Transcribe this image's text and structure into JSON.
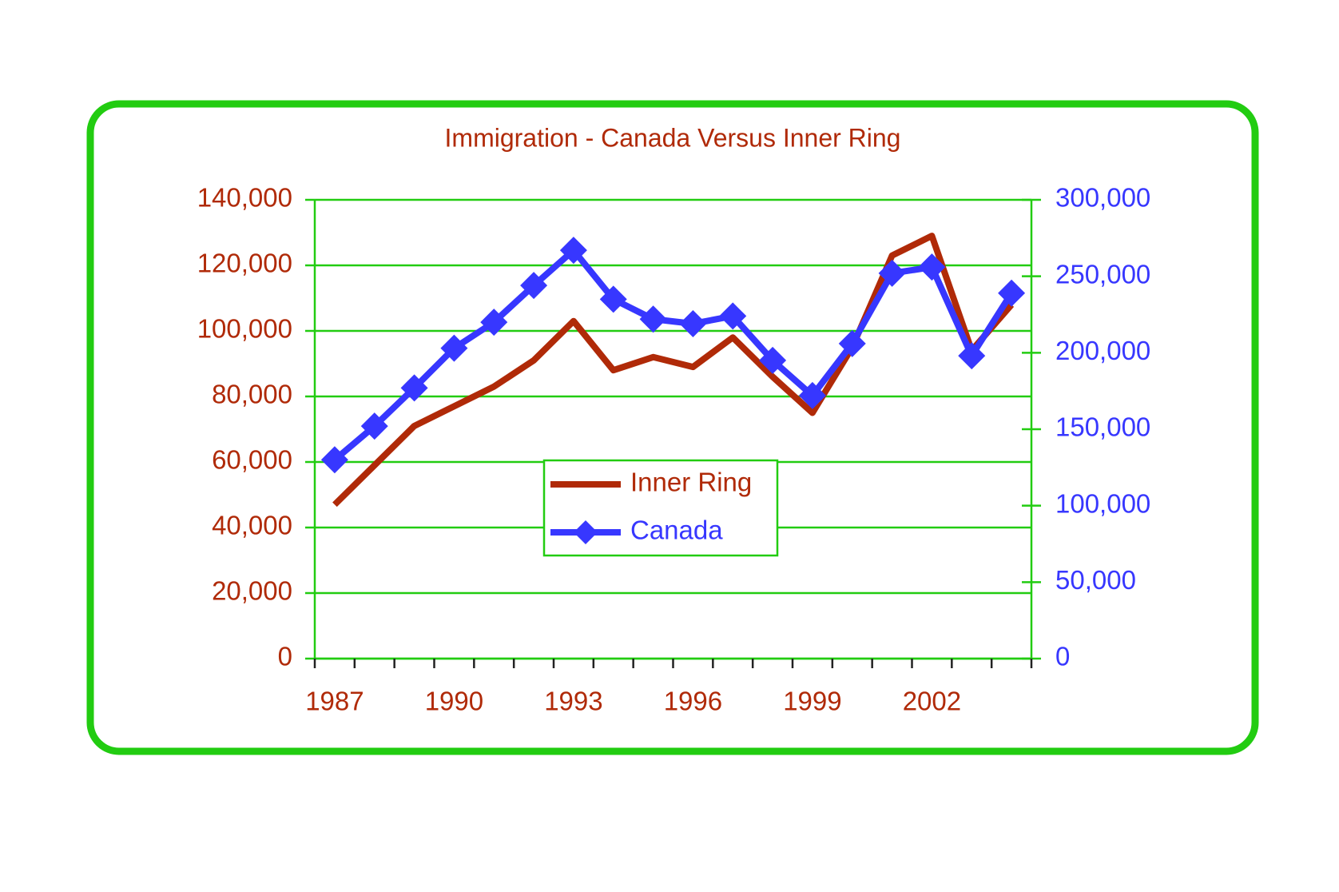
{
  "chart_data": {
    "type": "line",
    "title": "Immigration - Canada Versus Inner Ring",
    "categories": [
      "1987",
      null,
      null,
      "1990",
      null,
      null,
      "1993",
      null,
      null,
      "1996",
      null,
      null,
      "1999",
      null,
      null,
      "2002",
      null,
      null
    ],
    "series": [
      {
        "name": "Inner Ring",
        "color": "#b02a08",
        "values": [
          47000,
          59000,
          71000,
          77000,
          83000,
          91000,
          103000,
          88000,
          92000,
          89000,
          98000,
          86000,
          75000,
          95000,
          123000,
          129000,
          94000,
          108000
        ]
      },
      {
        "name": "Canada",
        "color": "#3737ff",
        "axis": "y2",
        "marker": "diamond",
        "values": [
          130000,
          152000,
          177000,
          203000,
          220000,
          244000,
          267000,
          235000,
          222000,
          219000,
          224000,
          195000,
          172000,
          206000,
          252000,
          256000,
          198000,
          239000
        ]
      }
    ],
    "ylim": [
      0,
      140000
    ],
    "yticks": [
      0,
      {
        "value": 20000,
        "label": "20,000"
      },
      {
        "value": 40000,
        "label": "40,000"
      },
      {
        "value": 60000,
        "label": "60,000"
      },
      {
        "value": 80000,
        "label": "80,000"
      },
      {
        "value": 100000,
        "label": "100,000"
      },
      {
        "value": 120000,
        "label": "120,000"
      },
      {
        "value": 140000,
        "label": "140,000"
      }
    ],
    "y2lim": [
      0,
      300000
    ],
    "y2ticks": [
      0,
      {
        "value": 50000,
        "label": "50,000"
      },
      {
        "value": 100000,
        "label": "100,000"
      },
      {
        "value": 150000,
        "label": "150,000"
      },
      {
        "value": 200000,
        "label": "200,000"
      },
      {
        "value": 250000,
        "label": "250,000"
      },
      {
        "value": 300000,
        "label": "300,000"
      }
    ],
    "grid": true,
    "legend": "center"
  }
}
